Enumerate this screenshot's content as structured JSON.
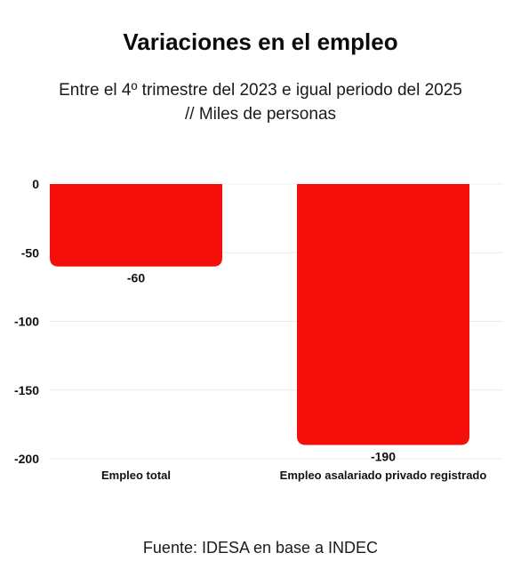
{
  "title": "Variaciones en el empleo",
  "subtitle_line1": "Entre el 4º trimestre del 2023 e igual periodo del 2025",
  "subtitle_line2": "// Miles de personas",
  "source": "Fuente: IDESA en base a INDEC",
  "colors": {
    "bar": "#f50f0a",
    "grid": "#ececec",
    "text": "#111111"
  },
  "chart_data": {
    "type": "bar",
    "title": "Variaciones en el empleo",
    "categories": [
      "Empleo total",
      "Empleo asalariado privado registrado"
    ],
    "values": [
      -60,
      -190
    ],
    "data_labels": [
      "-60",
      "-190"
    ],
    "ylim": [
      -200,
      0
    ],
    "yticks": [
      0,
      -50,
      -100,
      -150,
      -200
    ],
    "grid": true,
    "xlabel": "",
    "ylabel": ""
  }
}
